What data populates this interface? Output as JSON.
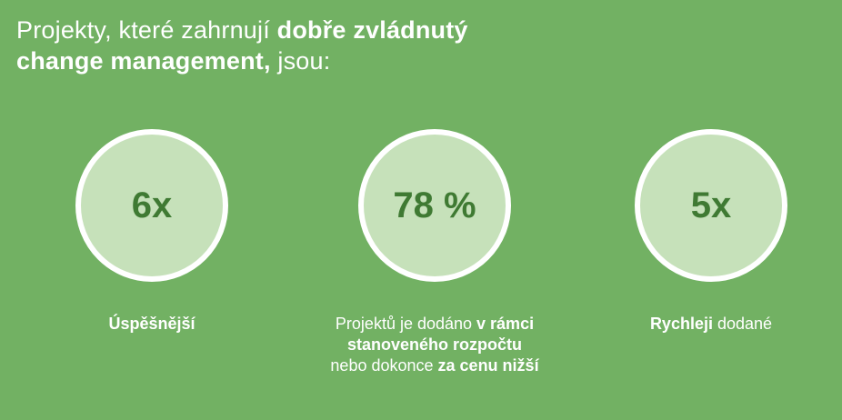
{
  "headline": {
    "line1_regular": "Projekty, které zahrnují ",
    "line1_bold": "dobře zvládnutý",
    "line2_bold": "change management,",
    "line2_regular": " jsou:"
  },
  "stats": [
    {
      "value": "6x",
      "caption_bold": "Úspěšnější"
    },
    {
      "value": "78 %",
      "caption_line1_regular": "Projektů je dodáno ",
      "caption_line1_bold": "v rámci",
      "caption_line2_bold": "stanoveného rozpočtu",
      "caption_line3_regular": "nebo dokonce ",
      "caption_line3_bold": "za cenu nižší"
    },
    {
      "value": "5x",
      "caption_bold": "Rychleji",
      "caption_regular": " dodané"
    }
  ],
  "colors": {
    "background": "#72b163",
    "circle_fill": "#c6e1ba",
    "circle_ring": "#ffffff",
    "value_text": "#3f7a33"
  }
}
